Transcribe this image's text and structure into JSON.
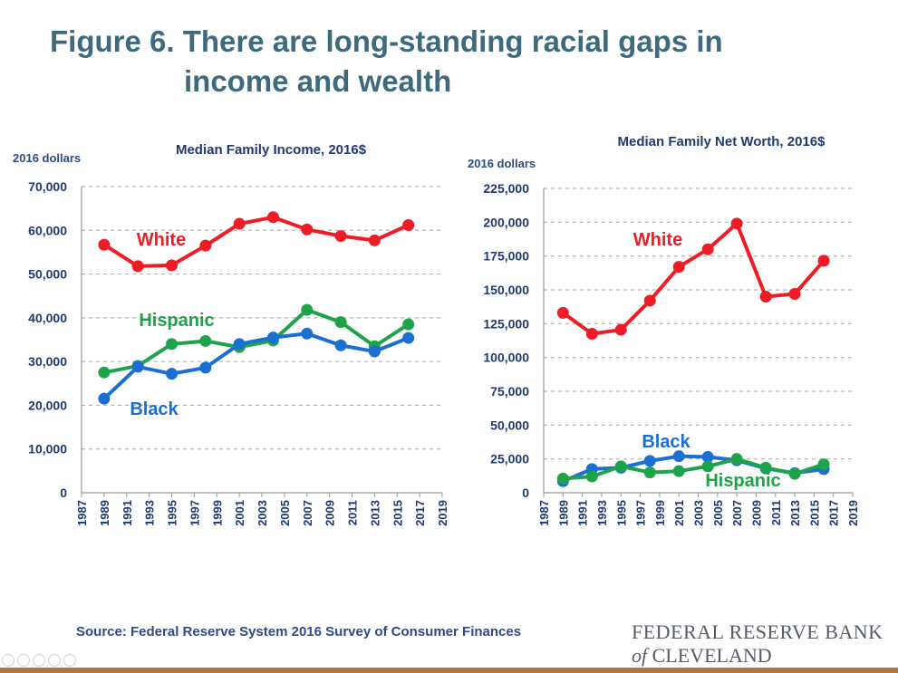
{
  "page": {
    "title_line1": "Figure 6. There are long-standing racial gaps in",
    "title_line2": "income and wealth",
    "source": "Source: Federal Reserve System 2016 Survey of Consumer Finances",
    "logo_line1": "FEDERAL RESERVE BANK",
    "logo_of": "of",
    "logo_city": "CLEVELAND"
  },
  "colors": {
    "white": "#ee1c25",
    "black": "#1a6fd1",
    "hispanic": "#1ea34a",
    "title": "#3e6a7e",
    "text": "#1f3a73"
  },
  "chart_data": [
    {
      "type": "line",
      "title": "Median Family Income, 2016$",
      "ylabel": "2016 dollars",
      "ylim": [
        0,
        70000
      ],
      "yticks": [
        0,
        10000,
        20000,
        30000,
        40000,
        50000,
        60000,
        70000
      ],
      "ytick_labels": [
        "0",
        "10,000",
        "20,000",
        "30,000",
        "40,000",
        "50,000",
        "60,000",
        "70,000"
      ],
      "xlim": [
        1987,
        2019
      ],
      "xticks": [
        "1987",
        "1989",
        "1991",
        "1993",
        "1995",
        "1997",
        "1999",
        "2001",
        "2003",
        "2005",
        "2007",
        "2009",
        "2011",
        "2013",
        "2015",
        "2017",
        "2019"
      ],
      "x": [
        1989,
        1992,
        1995,
        1998,
        2001,
        2004,
        2007,
        2010,
        2013,
        2016
      ],
      "grid": true,
      "series": [
        {
          "name": "White",
          "color": "#ee1c25",
          "values": [
            56700,
            51800,
            52000,
            56500,
            61500,
            63000,
            60200,
            58700,
            57700,
            61200
          ]
        },
        {
          "name": "Hispanic",
          "color": "#1ea34a",
          "values": [
            27500,
            29000,
            34000,
            34700,
            33300,
            34800,
            41800,
            39000,
            33500,
            38500
          ]
        },
        {
          "name": "Black",
          "color": "#1a6fd1",
          "values": [
            21500,
            28800,
            27200,
            28600,
            34000,
            35500,
            36400,
            33700,
            32300,
            35400
          ]
        }
      ]
    },
    {
      "type": "line",
      "title": "Median Family Net Worth, 2016$",
      "ylabel": "2016 dollars",
      "ylim": [
        0,
        225000
      ],
      "yticks": [
        0,
        25000,
        50000,
        75000,
        100000,
        125000,
        150000,
        175000,
        200000,
        225000
      ],
      "ytick_labels": [
        "0",
        "25,000",
        "50,000",
        "75,000",
        "100,000",
        "125,000",
        "150,000",
        "175,000",
        "200,000",
        "225,000"
      ],
      "xlim": [
        1987,
        2019
      ],
      "xticks": [
        "1987",
        "1989",
        "1991",
        "1993",
        "1995",
        "1997",
        "1999",
        "2001",
        "2003",
        "2005",
        "2007",
        "2009",
        "2011",
        "2013",
        "2015",
        "2017",
        "2019"
      ],
      "x": [
        1989,
        1992,
        1995,
        1998,
        2001,
        2004,
        2007,
        2010,
        2013,
        2016
      ],
      "grid": true,
      "series": [
        {
          "name": "White",
          "color": "#ee1c25",
          "values": [
            133000,
            117500,
            120500,
            142000,
            167000,
            180000,
            199000,
            145000,
            147000,
            171500
          ]
        },
        {
          "name": "Black",
          "color": "#1a6fd1",
          "values": [
            8500,
            17500,
            18500,
            23500,
            27000,
            26500,
            24000,
            18000,
            14500,
            17500
          ]
        },
        {
          "name": "Hispanic",
          "color": "#1ea34a",
          "values": [
            10500,
            12000,
            19500,
            15000,
            16000,
            19500,
            25000,
            18500,
            14000,
            21000
          ]
        }
      ]
    }
  ]
}
